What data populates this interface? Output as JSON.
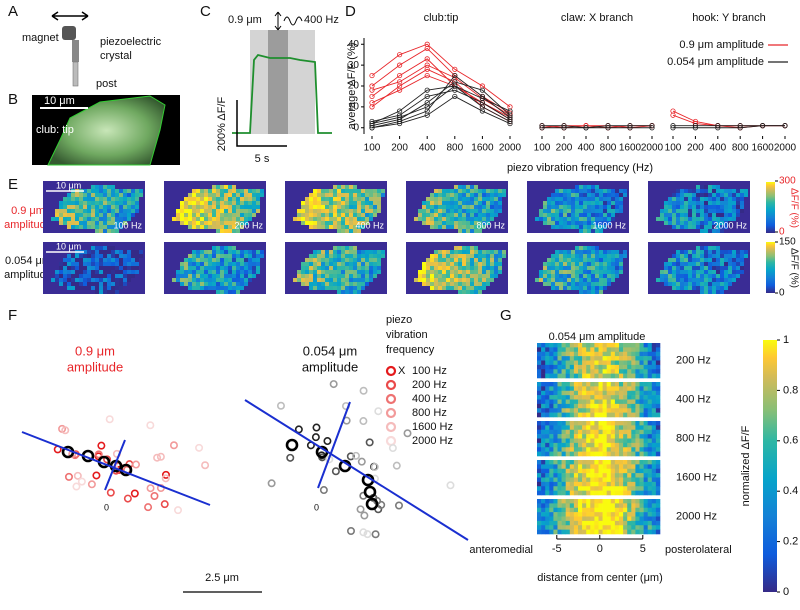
{
  "panel_labels": {
    "A": "A",
    "B": "B",
    "C": "C",
    "D": "D",
    "E": "E",
    "F": "F",
    "G": "G"
  },
  "A": {
    "magnet": "magnet",
    "piezo_line1": "piezoelectric",
    "piezo_line2": "crystal",
    "post": "post"
  },
  "B": {
    "scale": "10 μm",
    "region": "club: tip"
  },
  "C": {
    "amplitude": "0.9 μm",
    "frequency": "400 Hz",
    "y_scale": "200% ΔF/F",
    "x_scale": "5 s"
  },
  "chart_data": [
    {
      "type": "line",
      "title": "club:tip",
      "ylabel": "average ΔF/F (%)",
      "categories": [
        "100",
        "200",
        "400",
        "800",
        "1600",
        "2000"
      ],
      "ylim": [
        -3,
        43
      ],
      "yticks": [
        0,
        10,
        20,
        30,
        40
      ],
      "series": [
        {
          "color": "#e8262a",
          "values": [
            15,
            25,
            33,
            20,
            12,
            5
          ]
        },
        {
          "color": "#e8262a",
          "values": [
            20,
            30,
            38,
            25,
            15,
            7
          ]
        },
        {
          "color": "#e8262a",
          "values": [
            10,
            20,
            28,
            22,
            10,
            3
          ]
        },
        {
          "color": "#e8262a",
          "values": [
            25,
            35,
            40,
            28,
            20,
            10
          ]
        },
        {
          "color": "#e8262a",
          "values": [
            18,
            22,
            30,
            24,
            14,
            6
          ]
        },
        {
          "color": "#e8262a",
          "values": [
            12,
            18,
            25,
            20,
            12,
            4
          ]
        },
        {
          "color": "#222222",
          "values": [
            2,
            5,
            10,
            20,
            10,
            3
          ]
        },
        {
          "color": "#222222",
          "values": [
            0,
            3,
            8,
            25,
            15,
            5
          ]
        },
        {
          "color": "#222222",
          "values": [
            1,
            4,
            12,
            22,
            18,
            6
          ]
        },
        {
          "color": "#222222",
          "values": [
            3,
            6,
            15,
            18,
            12,
            4
          ]
        },
        {
          "color": "#222222",
          "values": [
            0,
            2,
            6,
            15,
            8,
            2
          ]
        },
        {
          "color": "#222222",
          "values": [
            2,
            8,
            18,
            20,
            14,
            8
          ]
        }
      ]
    },
    {
      "type": "line",
      "title": "claw: X branch",
      "xlabel": "piezo vibration frequency (Hz)",
      "categories": [
        "100",
        "200",
        "400",
        "800",
        "1600",
        "2000"
      ],
      "ylim": [
        -3,
        43
      ],
      "series": [
        {
          "color": "#e8262a",
          "values": [
            0,
            1,
            1,
            0,
            1,
            1
          ]
        },
        {
          "color": "#e8262a",
          "values": [
            1,
            0,
            1,
            1,
            0,
            1
          ]
        },
        {
          "color": "#222222",
          "values": [
            0,
            0,
            0,
            0,
            0,
            0
          ]
        },
        {
          "color": "#222222",
          "values": [
            1,
            1,
            0,
            1,
            1,
            1
          ]
        }
      ]
    },
    {
      "type": "line",
      "title": "hook: Y branch",
      "categories": [
        "100",
        "200",
        "400",
        "800",
        "1600",
        "2000"
      ],
      "ylim": [
        -3,
        43
      ],
      "legend": [
        {
          "name": "0.9 μm amplitude",
          "color": "#e8262a"
        },
        {
          "name": "0.054 μm amplitude",
          "color": "#222222"
        }
      ],
      "series": [
        {
          "color": "#e8262a",
          "values": [
            8,
            3,
            1,
            1,
            1,
            1
          ]
        },
        {
          "color": "#e8262a",
          "values": [
            6,
            2,
            1,
            0,
            1,
            1
          ]
        },
        {
          "color": "#222222",
          "values": [
            0,
            0,
            0,
            0,
            1,
            1
          ]
        },
        {
          "color": "#222222",
          "values": [
            1,
            1,
            1,
            1,
            1,
            1
          ]
        }
      ]
    }
  ],
  "E": {
    "row1_amp": "0.9 μm",
    "row1_unit": "amplitude",
    "row2_amp": "0.054 μm",
    "row2_unit": "amplitude",
    "scale1": "10 μm",
    "scale2": "10 μm",
    "frequencies": [
      "100 Hz",
      "200 Hz",
      "400 Hz",
      "800 Hz",
      "1600 Hz",
      "2000 Hz"
    ],
    "colorbar1_label": "ΔF/F (%)",
    "colorbar2_label": "ΔF/F (%)",
    "colorbar1_ticks": [
      0,
      300
    ],
    "colorbar2_ticks": [
      0,
      150
    ]
  },
  "F": {
    "left_amp": "0.9 μm",
    "left_unit": "amplitude",
    "right_amp": "0.054 μm",
    "right_unit": "amplitude",
    "legend_title": [
      "piezo",
      "vibration",
      "frequency"
    ],
    "legend": [
      {
        "symbol": "X",
        "label": "100 Hz",
        "color": "#e41a1c",
        "color_right": "#222222"
      },
      {
        "label": "200 Hz",
        "color": "#ea4a4a",
        "color_right": "#555555"
      },
      {
        "label": "400 Hz",
        "color": "#ee7272",
        "color_right": "#7a7a7a"
      },
      {
        "label": "800 Hz",
        "color": "#f29a9a",
        "color_right": "#9a9a9a"
      },
      {
        "label": "1600 Hz",
        "color": "#f5bcbc",
        "color_right": "#bdbdbd"
      },
      {
        "label": "2000 Hz",
        "color": "#f8dada",
        "color_right": "#dddddd"
      }
    ],
    "origin_left": "0",
    "origin_right": "0",
    "scale": "2.5 μm"
  },
  "G": {
    "title": "0.054 μm amplitude",
    "frequencies": [
      "200 Hz",
      "400 Hz",
      "800 Hz",
      "1600 Hz",
      "2000 Hz"
    ],
    "left": "anteromedial",
    "right": "posterolateral",
    "xlabel": "distance from center (μm)",
    "xlim": [
      -7.3,
      7
    ],
    "xticks": [
      -5,
      0,
      5
    ],
    "colorbar_label": "normalized ΔF/F",
    "colorbar_ticks": [
      0,
      0.2,
      0.4,
      0.6,
      0.8,
      1
    ]
  }
}
